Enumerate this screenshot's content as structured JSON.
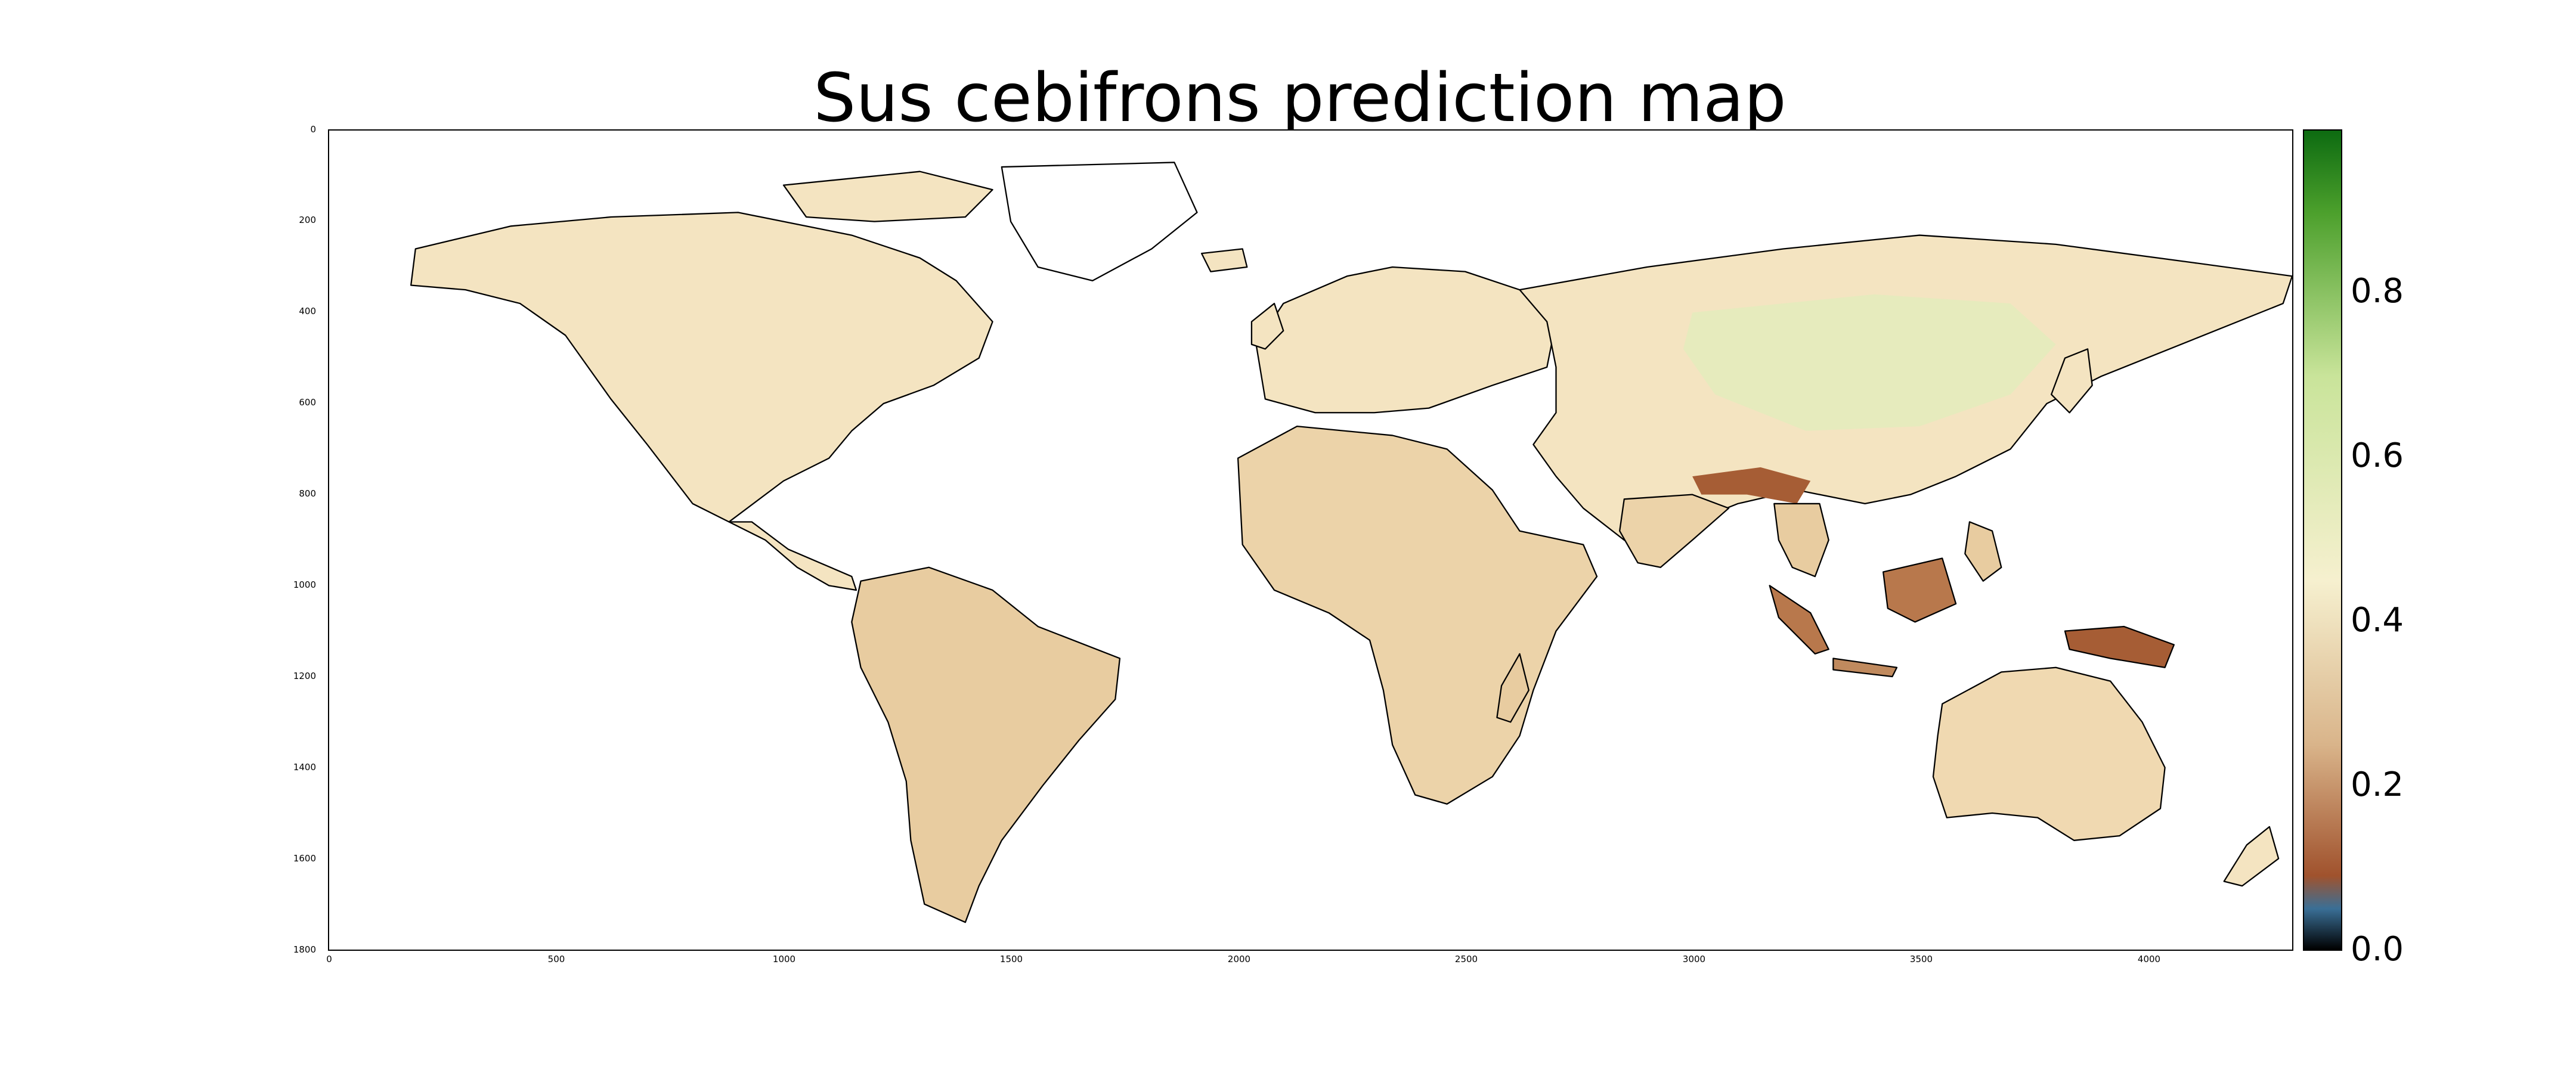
{
  "title": "Sus cebifrons prediction map",
  "y_axis_ticks": [
    "0",
    "200",
    "400",
    "600",
    "800",
    "1000",
    "1200",
    "1400",
    "1600",
    "1800"
  ],
  "x_axis_ticks": [
    "0",
    "500",
    "1000",
    "1500",
    "2000",
    "2500",
    "3000",
    "3500",
    "4000"
  ],
  "colorbar": {
    "ticks": [
      "0.0",
      "0.2",
      "0.4",
      "0.6",
      "0.8"
    ],
    "range": [
      0.0,
      1.0
    ],
    "colors": {
      "low": "#000000",
      "blue": "#3a6f96",
      "brown": "#a0522d",
      "tan": "#d9b48a",
      "cream": "#f6f0cf",
      "lightgreen": "#c9e49a",
      "green": "#4ca02c",
      "dark_green": "#0d6b11"
    }
  },
  "colors": {
    "land": "#f4e4c1",
    "land_dark": "#c79a6a",
    "land_hot": "#a65d35",
    "land_green": "#e6ebbd",
    "coast": "#000000"
  }
}
